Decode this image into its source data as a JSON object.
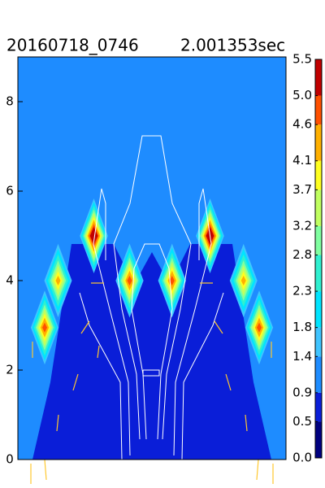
{
  "chart_data": {
    "type": "contour",
    "title": "20160718_0746",
    "subtitle": "2.001353sec",
    "xlim": [
      -3,
      3
    ],
    "ylim": [
      0,
      9
    ],
    "yticks": [
      0,
      2,
      4,
      6,
      8
    ],
    "background_value": 1.2,
    "low_region_value": 0.7,
    "peaks": [
      {
        "x": -2.4,
        "y": 2.95,
        "value": 4.6
      },
      {
        "x": -2.1,
        "y": 4.0,
        "value": 4.1
      },
      {
        "x": -1.3,
        "y": 5.0,
        "value": 5.5
      },
      {
        "x": -0.5,
        "y": 4.0,
        "value": 4.6
      },
      {
        "x": 0.45,
        "y": 4.0,
        "value": 4.6
      },
      {
        "x": 1.3,
        "y": 5.0,
        "value": 5.5
      },
      {
        "x": 2.05,
        "y": 4.0,
        "value": 4.1
      },
      {
        "x": 2.4,
        "y": 2.95,
        "value": 4.6
      }
    ],
    "colorbar_ticks": [
      {
        "value": 0,
        "label": "0.0"
      },
      0.5,
      0.9,
      1.4,
      1.8,
      2.3,
      2.8,
      3.2,
      3.7,
      4.1,
      4.6,
      {
        "value": 5,
        "label": "5.0"
      },
      5.5
    ],
    "colors": [
      "#00007f",
      "#0a1ed8",
      "#1e8cff",
      "#40c4ff",
      "#00e4ff",
      "#30f0d0",
      "#80ffa0",
      "#c0ff60",
      "#ffff20",
      "#ffb000",
      "#ff5000",
      "#c00000"
    ]
  }
}
